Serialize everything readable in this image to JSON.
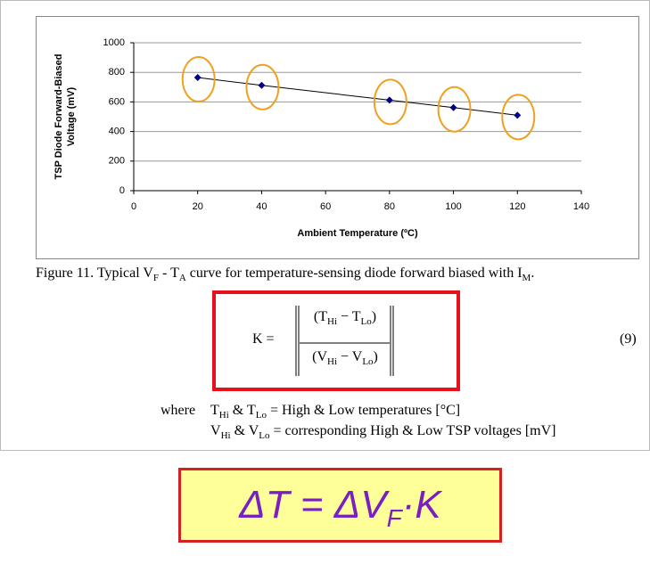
{
  "chart_data": {
    "type": "line",
    "x": [
      20,
      40,
      80,
      100,
      120
    ],
    "values": [
      765,
      712,
      612,
      562,
      510
    ],
    "color": "#00008b",
    "xlim": [
      0,
      140
    ],
    "xticks": [
      0,
      20,
      40,
      60,
      80,
      100,
      120,
      140
    ],
    "ylim": [
      0,
      1000
    ],
    "yticks": [
      0,
      200,
      400,
      600,
      800,
      1000
    ],
    "xlabel": "Ambient Temperature (ºC)",
    "ylabel": [
      "TSP Diode Forward-Biased",
      "Voltage (mV)"
    ],
    "grid": true,
    "highlight_color": "#f0a020"
  },
  "caption": [
    "Figure 11. Typical V",
    "F",
    " - T",
    "A",
    " curve for temperature-sensing diode forward biased with I",
    "M",
    "."
  ],
  "equation": {
    "lhs": "K =",
    "numerator": [
      "(T",
      "Hi",
      " − T",
      "Lo",
      ")"
    ],
    "denominator": [
      "(V",
      "Hi",
      " − V",
      "Lo",
      ")"
    ],
    "number": "(9)"
  },
  "where": {
    "label": "where",
    "lines": [
      [
        "T",
        "Hi",
        " & T",
        "Lo",
        " = High & Low temperatures [°C]"
      ],
      [
        "V",
        "Hi",
        " & V",
        "Lo",
        " = corresponding High & Low TSP voltages [mV]"
      ]
    ]
  },
  "formula": [
    "ΔT = ΔV",
    "F",
    "·K"
  ]
}
